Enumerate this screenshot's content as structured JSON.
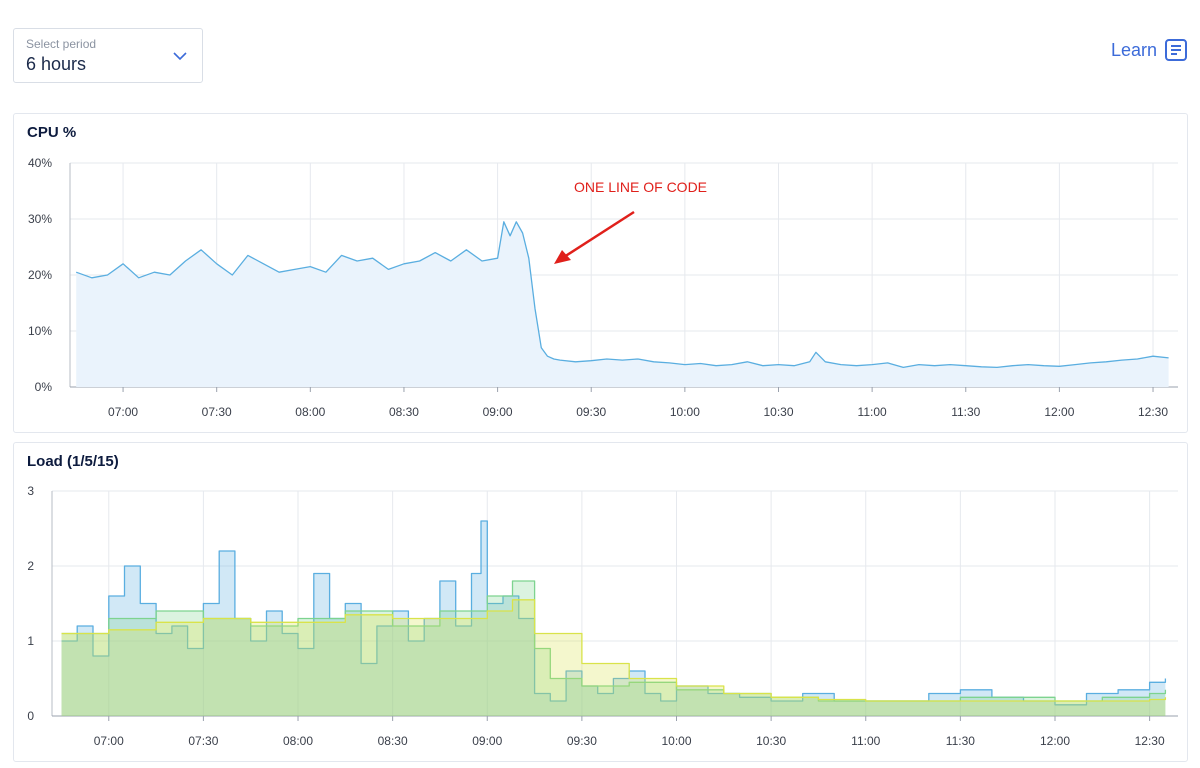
{
  "controls": {
    "period_label": "Select period",
    "period_value": "6 hours",
    "learn_label": "Learn"
  },
  "colors": {
    "cpu_line": "#5aaee0",
    "cpu_fill": "#eaf3fc",
    "load1": "#5aaee0",
    "load5": "#7dd38f",
    "load15": "#d9e34a",
    "annotation": "#e0201b",
    "grid": "#e6e9ee"
  },
  "chart_data": [
    {
      "type": "area",
      "title": "CPU %",
      "ylim": [
        0,
        40
      ],
      "yticks": [
        "0%",
        "10%",
        "20%",
        "30%",
        "40%"
      ],
      "xticks": [
        "07:00",
        "07:30",
        "08:00",
        "08:30",
        "09:00",
        "09:30",
        "10:00",
        "10:30",
        "11:00",
        "11:30",
        "12:00",
        "12:30"
      ],
      "grid": true,
      "annotation": "ONE LINE OF CODE",
      "series": [
        {
          "x": [
            "06:45",
            "06:50",
            "06:55",
            "07:00",
            "07:05",
            "07:10",
            "07:15",
            "07:20",
            "07:25",
            "07:30",
            "07:35",
            "07:40",
            "07:45",
            "07:50",
            "07:55",
            "08:00",
            "08:05",
            "08:10",
            "08:15",
            "08:20",
            "08:25",
            "08:30",
            "08:35",
            "08:40",
            "08:45",
            "08:50",
            "08:55",
            "09:00",
            "09:02",
            "09:04",
            "09:06",
            "09:08",
            "09:10",
            "09:12",
            "09:14",
            "09:16",
            "09:18",
            "09:20",
            "09:25",
            "09:30",
            "09:35",
            "09:40",
            "09:45",
            "09:50",
            "09:55",
            "10:00",
            "10:05",
            "10:10",
            "10:15",
            "10:20",
            "10:25",
            "10:30",
            "10:35",
            "10:40",
            "10:42",
            "10:45",
            "10:50",
            "10:55",
            "11:00",
            "11:05",
            "11:10",
            "11:15",
            "11:20",
            "11:25",
            "11:30",
            "11:35",
            "11:40",
            "11:45",
            "11:50",
            "11:55",
            "12:00",
            "12:05",
            "12:10",
            "12:15",
            "12:20",
            "12:25",
            "12:30",
            "12:35"
          ],
          "values": [
            20.5,
            19.5,
            20.0,
            22.0,
            19.5,
            20.5,
            20.0,
            22.5,
            24.5,
            22.0,
            20.0,
            23.5,
            22.0,
            20.5,
            21.0,
            21.5,
            20.5,
            23.5,
            22.5,
            23.0,
            21.0,
            22.0,
            22.5,
            24.0,
            22.5,
            24.5,
            22.5,
            23.0,
            29.5,
            27.0,
            29.5,
            27.5,
            23.0,
            14.0,
            7.0,
            5.5,
            5.0,
            4.8,
            4.5,
            4.7,
            5.0,
            4.8,
            5.0,
            4.5,
            4.3,
            4.0,
            4.2,
            3.8,
            4.0,
            4.5,
            3.8,
            4.0,
            3.8,
            4.5,
            6.2,
            4.5,
            4.0,
            3.8,
            4.0,
            4.3,
            3.5,
            4.0,
            3.8,
            4.0,
            3.8,
            3.6,
            3.5,
            3.8,
            4.0,
            3.8,
            3.7,
            4.0,
            4.3,
            4.5,
            4.8,
            5.0,
            5.5,
            5.2
          ]
        }
      ]
    },
    {
      "type": "area",
      "title": "Load (1/5/15)",
      "ylim": [
        0,
        3
      ],
      "yticks": [
        "0",
        "1",
        "2",
        "3"
      ],
      "xticks": [
        "07:00",
        "07:30",
        "08:00",
        "08:30",
        "09:00",
        "09:30",
        "10:00",
        "10:30",
        "11:00",
        "11:30",
        "12:00",
        "12:30"
      ],
      "grid": true,
      "series": [
        {
          "x": [
            "06:45",
            "06:50",
            "06:55",
            "07:00",
            "07:05",
            "07:10",
            "07:15",
            "07:20",
            "07:25",
            "07:30",
            "07:35",
            "07:40",
            "07:45",
            "07:50",
            "07:55",
            "08:00",
            "08:05",
            "08:10",
            "08:15",
            "08:20",
            "08:25",
            "08:30",
            "08:35",
            "08:40",
            "08:45",
            "08:50",
            "08:55",
            "08:58",
            "09:00",
            "09:05",
            "09:10",
            "09:15",
            "09:20",
            "09:25",
            "09:30",
            "09:35",
            "09:40",
            "09:45",
            "09:50",
            "09:55",
            "10:00",
            "10:10",
            "10:20",
            "10:30",
            "10:40",
            "10:50",
            "11:00",
            "11:10",
            "11:20",
            "11:30",
            "11:40",
            "11:50",
            "12:00",
            "12:10",
            "12:20",
            "12:30",
            "12:35"
          ],
          "values": [
            1.0,
            1.2,
            0.8,
            1.6,
            2.0,
            1.5,
            1.1,
            1.2,
            0.9,
            1.5,
            2.2,
            1.3,
            1.0,
            1.4,
            1.1,
            0.9,
            1.9,
            1.3,
            1.5,
            0.7,
            1.2,
            1.4,
            1.0,
            1.3,
            1.8,
            1.2,
            1.9,
            2.6,
            1.5,
            1.6,
            1.3,
            0.3,
            0.2,
            0.6,
            0.4,
            0.3,
            0.5,
            0.6,
            0.3,
            0.2,
            0.4,
            0.3,
            0.25,
            0.2,
            0.3,
            0.2,
            0.2,
            0.2,
            0.3,
            0.35,
            0.25,
            0.2,
            0.15,
            0.3,
            0.35,
            0.45,
            0.5
          ]
        },
        {
          "x": [
            "06:45",
            "07:00",
            "07:15",
            "07:30",
            "07:45",
            "08:00",
            "08:15",
            "08:30",
            "08:45",
            "09:00",
            "09:08",
            "09:15",
            "09:20",
            "09:30",
            "09:45",
            "10:00",
            "10:15",
            "10:30",
            "10:45",
            "11:00",
            "11:15",
            "11:30",
            "11:45",
            "12:00",
            "12:15",
            "12:30",
            "12:35"
          ],
          "values": [
            1.1,
            1.3,
            1.4,
            1.3,
            1.2,
            1.3,
            1.4,
            1.2,
            1.4,
            1.6,
            1.8,
            0.9,
            0.5,
            0.4,
            0.45,
            0.35,
            0.3,
            0.25,
            0.2,
            0.2,
            0.2,
            0.25,
            0.25,
            0.2,
            0.25,
            0.3,
            0.35
          ]
        },
        {
          "x": [
            "06:45",
            "07:00",
            "07:15",
            "07:30",
            "07:45",
            "08:00",
            "08:15",
            "08:30",
            "08:45",
            "09:00",
            "09:08",
            "09:15",
            "09:30",
            "09:45",
            "10:00",
            "10:15",
            "10:30",
            "10:45",
            "11:00",
            "11:15",
            "11:30",
            "11:45",
            "12:00",
            "12:15",
            "12:30",
            "12:35"
          ],
          "values": [
            1.1,
            1.15,
            1.25,
            1.3,
            1.25,
            1.25,
            1.35,
            1.3,
            1.3,
            1.4,
            1.55,
            1.1,
            0.7,
            0.5,
            0.4,
            0.3,
            0.25,
            0.22,
            0.2,
            0.2,
            0.2,
            0.2,
            0.2,
            0.2,
            0.22,
            0.25
          ]
        }
      ]
    }
  ]
}
